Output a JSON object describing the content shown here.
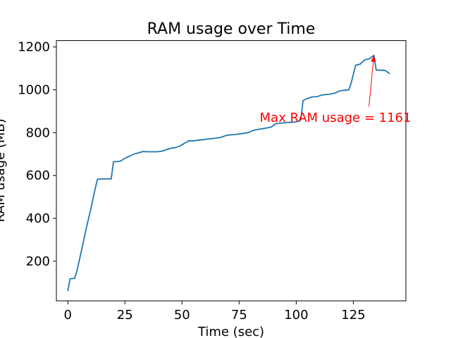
{
  "chart_data": {
    "type": "line",
    "title": "RAM usage over Time",
    "xlabel": "Time (sec)",
    "ylabel": "RAM usage (MB)",
    "xlim": [
      -5,
      148
    ],
    "ylim": [
      15,
      1230
    ],
    "xticks": [
      0,
      25,
      50,
      75,
      100,
      125
    ],
    "yticks": [
      200,
      400,
      600,
      800,
      1000,
      1200
    ],
    "grid": false,
    "series": [
      {
        "color": "#1f77b4",
        "x": [
          0,
          1,
          3,
          4,
          6,
          8,
          10,
          12,
          13,
          15,
          17,
          19,
          20,
          22,
          23,
          25,
          27,
          29,
          31,
          33,
          35,
          37,
          39,
          41,
          43,
          45,
          47,
          49,
          51,
          53,
          55,
          57,
          59,
          61,
          63,
          65,
          67,
          69,
          71,
          73,
          75,
          77,
          79,
          81,
          83,
          85,
          87,
          89,
          91,
          93,
          95,
          97,
          99,
          101,
          102,
          103,
          105,
          107,
          109,
          111,
          113,
          115,
          117,
          119,
          121,
          123,
          124,
          126,
          128,
          130,
          132,
          134,
          135,
          137,
          139,
          141
        ],
        "y": [
          60,
          118,
          120,
          155,
          250,
          350,
          440,
          540,
          583,
          584,
          584,
          584,
          665,
          665,
          667,
          680,
          690,
          700,
          706,
          712,
          711,
          711,
          711,
          713,
          720,
          727,
          730,
          737,
          750,
          762,
          762,
          765,
          767,
          770,
          772,
          775,
          778,
          786,
          790,
          791,
          794,
          797,
          800,
          810,
          815,
          818,
          822,
          826,
          842,
          844,
          846,
          848,
          849,
          853,
          860,
          950,
          960,
          967,
          968,
          975,
          978,
          980,
          985,
          995,
          998,
          1000,
          1030,
          1115,
          1120,
          1140,
          1145,
          1161,
          1092,
          1092,
          1090,
          1075
        ]
      }
    ],
    "annotation": {
      "text": "Max RAM usage = 1161",
      "color": "#ff0000",
      "xy": [
        134,
        1161
      ],
      "text_xy": [
        84,
        870
      ]
    }
  }
}
